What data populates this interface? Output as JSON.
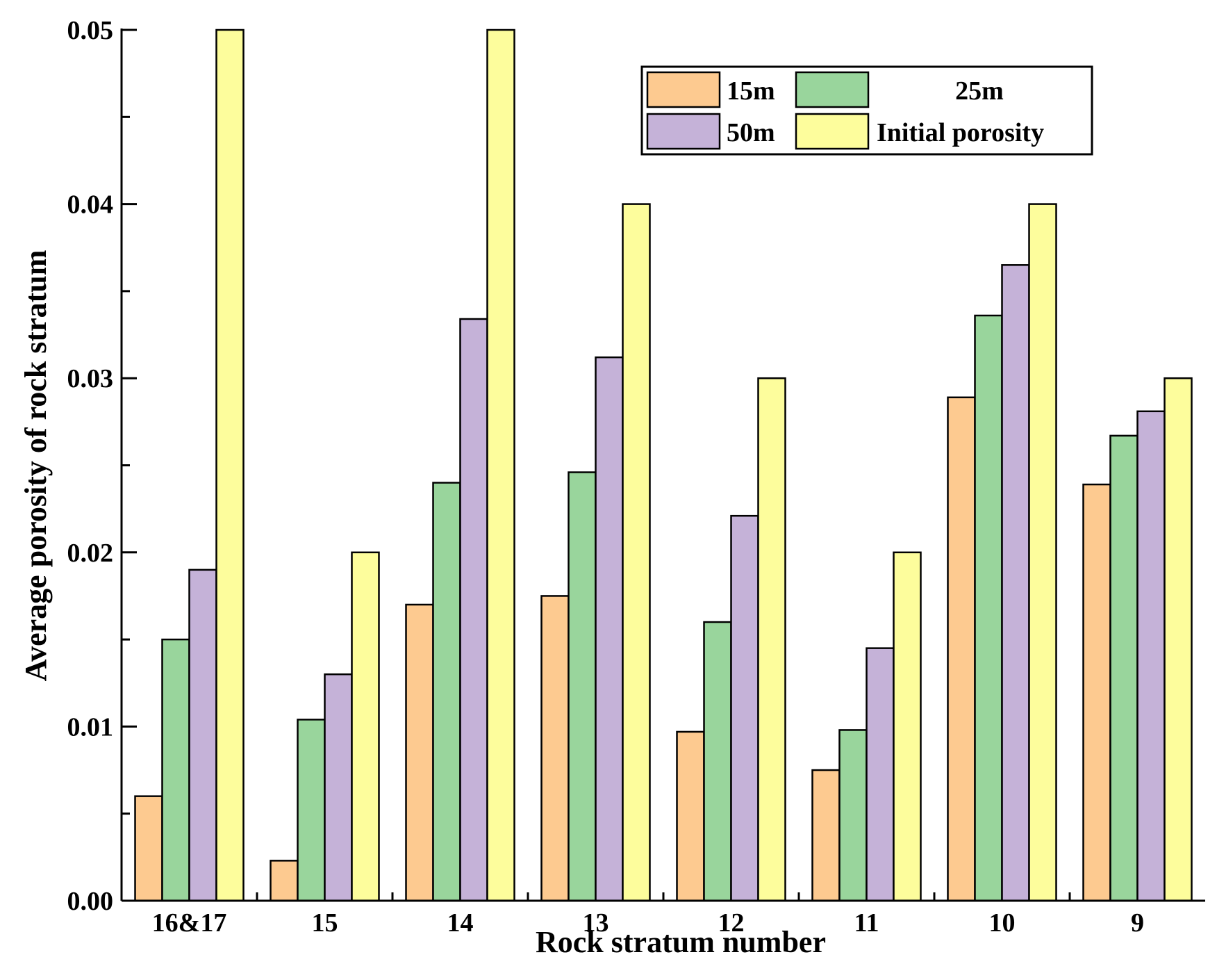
{
  "chart_data": {
    "type": "bar",
    "title": "",
    "xlabel": "Rock stratum number",
    "ylabel": "Average porosity of rock stratum",
    "categories": [
      "16&17",
      "15",
      "14",
      "13",
      "12",
      "11",
      "10",
      "9"
    ],
    "ylim": [
      0,
      0.05
    ],
    "yticks": [
      0.0,
      0.01,
      0.02,
      0.03,
      0.04,
      0.05
    ],
    "ytick_labels": [
      "0.00",
      "0.01",
      "0.02",
      "0.03",
      "0.04",
      "0.05"
    ],
    "grid": false,
    "legend_position": "top-right",
    "series": [
      {
        "name": "15m",
        "color": "#fdca90",
        "values": [
          0.006,
          0.0023,
          0.017,
          0.0175,
          0.0097,
          0.0075,
          0.0289,
          0.0239
        ]
      },
      {
        "name": "25m",
        "color": "#99d59c",
        "values": [
          0.015,
          0.0104,
          0.024,
          0.0246,
          0.016,
          0.0098,
          0.0336,
          0.0267
        ]
      },
      {
        "name": "50m",
        "color": "#c5b2d8",
        "values": [
          0.019,
          0.013,
          0.0334,
          0.0312,
          0.0221,
          0.0145,
          0.0365,
          0.0281
        ]
      },
      {
        "name": "Initial porosity",
        "color": "#fdfd9c",
        "values": [
          0.05,
          0.02,
          0.05,
          0.04,
          0.03,
          0.02,
          0.04,
          0.03
        ]
      }
    ]
  }
}
